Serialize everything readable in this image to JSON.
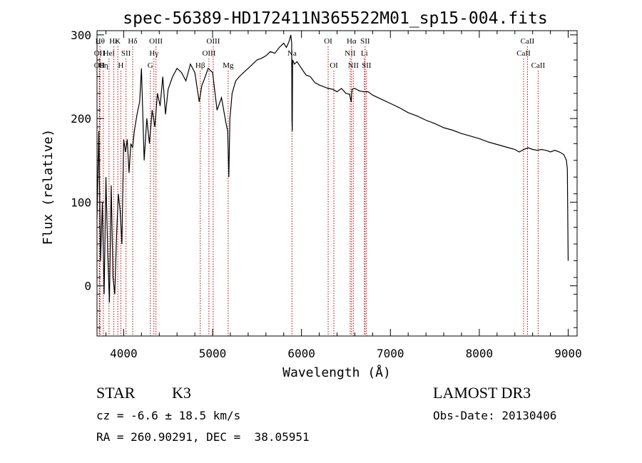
{
  "chart_data": {
    "type": "line",
    "title": "spec-56389-HD172411N365522M01_sp15-004.fits",
    "xlabel": "Wavelength (Å)",
    "ylabel": "Flux (relative)",
    "xlim": [
      3700,
      9100
    ],
    "ylim": [
      -60,
      305
    ],
    "xticks": [
      4000,
      5000,
      6000,
      7000,
      8000,
      9000
    ],
    "yticks": [
      0,
      100,
      200,
      300
    ],
    "grid": false,
    "legend": "none",
    "line_color": "#000000",
    "marker_color": "#c00000",
    "series": [
      {
        "x": [
          3700,
          3720,
          3740,
          3760,
          3780,
          3800,
          3820,
          3840,
          3860,
          3880,
          3900,
          3920,
          3940,
          3960,
          3980,
          4000,
          4020,
          4040,
          4060,
          4080,
          4100,
          4120,
          4150,
          4180,
          4200,
          4230,
          4260,
          4290,
          4320,
          4350,
          4380,
          4410,
          4440,
          4470,
          4500,
          4550,
          4600,
          4650,
          4700,
          4750,
          4800,
          4850,
          4880,
          4900,
          4950,
          5000,
          5050,
          5100,
          5150,
          5170,
          5183,
          5195,
          5220,
          5260,
          5300,
          5350,
          5400,
          5450,
          5500,
          5550,
          5600,
          5650,
          5700,
          5750,
          5800,
          5830,
          5860,
          5880,
          5890,
          5893,
          5896,
          5900,
          5920,
          5950,
          6000,
          6050,
          6100,
          6150,
          6200,
          6250,
          6300,
          6350,
          6400,
          6450,
          6500,
          6540,
          6560,
          6563,
          6570,
          6600,
          6650,
          6700,
          6750,
          6800,
          6900,
          7000,
          7100,
          7200,
          7300,
          7400,
          7500,
          7600,
          7700,
          7800,
          7900,
          8000,
          8100,
          8200,
          8300,
          8400,
          8450,
          8500,
          8550,
          8600,
          8650,
          8700,
          8750,
          8800,
          8850,
          8900,
          8950,
          8980,
          8990,
          9000
        ],
        "values": [
          80,
          185,
          30,
          100,
          -10,
          130,
          40,
          -20,
          120,
          10,
          -10,
          60,
          110,
          90,
          50,
          175,
          160,
          175,
          135,
          170,
          165,
          185,
          205,
          220,
          260,
          150,
          200,
          170,
          210,
          190,
          230,
          215,
          250,
          205,
          235,
          250,
          260,
          255,
          245,
          265,
          255,
          220,
          240,
          245,
          260,
          255,
          210,
          225,
          195,
          185,
          130,
          200,
          230,
          245,
          250,
          255,
          260,
          265,
          270,
          272,
          275,
          280,
          278,
          285,
          290,
          285,
          292,
          300,
          290,
          200,
          185,
          270,
          265,
          268,
          260,
          252,
          250,
          243,
          240,
          238,
          236,
          235,
          232,
          236,
          230,
          229,
          220,
          228,
          235,
          236,
          233,
          232,
          232,
          228,
          223,
          218,
          213,
          207,
          203,
          198,
          194,
          189,
          186,
          182,
          179,
          176,
          172,
          169,
          166,
          163,
          160,
          163,
          165,
          163,
          162,
          163,
          162,
          160,
          162,
          160,
          157,
          150,
          140,
          30
        ]
      }
    ],
    "line_markers": [
      {
        "x": 3734,
        "labels": [
          "Hθ"
        ],
        "tier": 1
      },
      {
        "x": 3727,
        "labels": [
          "OII"
        ],
        "tier": 2
      },
      {
        "x": 3727,
        "labels": [
          "OII"
        ],
        "tier": 3
      },
      {
        "x": 3771,
        "labels": [
          "Hη"
        ],
        "tier": 3
      },
      {
        "x": 3835,
        "labels": [
          "HeI"
        ],
        "tier": 2
      },
      {
        "x": 3889,
        "labels": [
          "Hε"
        ],
        "tier": 1
      },
      {
        "x": 3934,
        "labels": [
          "K"
        ],
        "tier": 1
      },
      {
        "x": 3968,
        "labels": [
          "H"
        ],
        "tier": 3
      },
      {
        "x": 4026,
        "labels": [
          "SII"
        ],
        "tier": 2
      },
      {
        "x": 4101,
        "labels": [
          "Hδ"
        ],
        "tier": 1
      },
      {
        "x": 4300,
        "labels": [
          "G"
        ],
        "tier": 3
      },
      {
        "x": 4340,
        "labels": [
          "Hγ"
        ],
        "tier": 2
      },
      {
        "x": 4363,
        "labels": [
          "OIII"
        ],
        "tier": 1
      },
      {
        "x": 4861,
        "labels": [
          "Hβ"
        ],
        "tier": 3
      },
      {
        "x": 4959,
        "labels": [
          "OIII"
        ],
        "tier": 2
      },
      {
        "x": 5007,
        "labels": [
          "OIII"
        ],
        "tier": 1
      },
      {
        "x": 5175,
        "labels": [
          "Mg"
        ],
        "tier": 3
      },
      {
        "x": 5893,
        "labels": [
          "Na"
        ],
        "tier": 2
      },
      {
        "x": 6300,
        "labels": [
          "OI"
        ],
        "tier": 1
      },
      {
        "x": 6364,
        "labels": [
          "OI"
        ],
        "tier": 3
      },
      {
        "x": 6548,
        "labels": [
          "NII"
        ],
        "tier": 2
      },
      {
        "x": 6563,
        "labels": [
          "Hα"
        ],
        "tier": 1
      },
      {
        "x": 6583,
        "labels": [
          "NII"
        ],
        "tier": 3
      },
      {
        "x": 6707,
        "labels": [
          "Li"
        ],
        "tier": 2
      },
      {
        "x": 6716,
        "labels": [
          "SII"
        ],
        "tier": 1
      },
      {
        "x": 6731,
        "labels": [
          "SII"
        ],
        "tier": 3
      },
      {
        "x": 8498,
        "labels": [
          "CaII"
        ],
        "tier": 2
      },
      {
        "x": 8542,
        "labels": [
          "CaII"
        ],
        "tier": 1
      },
      {
        "x": 8662,
        "labels": [
          "CaII"
        ],
        "tier": 3
      }
    ]
  },
  "info": {
    "object_class": "STAR",
    "subclass": "K3",
    "redshift_text": "cz = -6.6 ± 18.5 km/s",
    "coords_text": "RA = 260.90291, DEC =  38.05951",
    "survey": "LAMOST DR3",
    "obs_date_text": "Obs-Date: 20130406"
  }
}
